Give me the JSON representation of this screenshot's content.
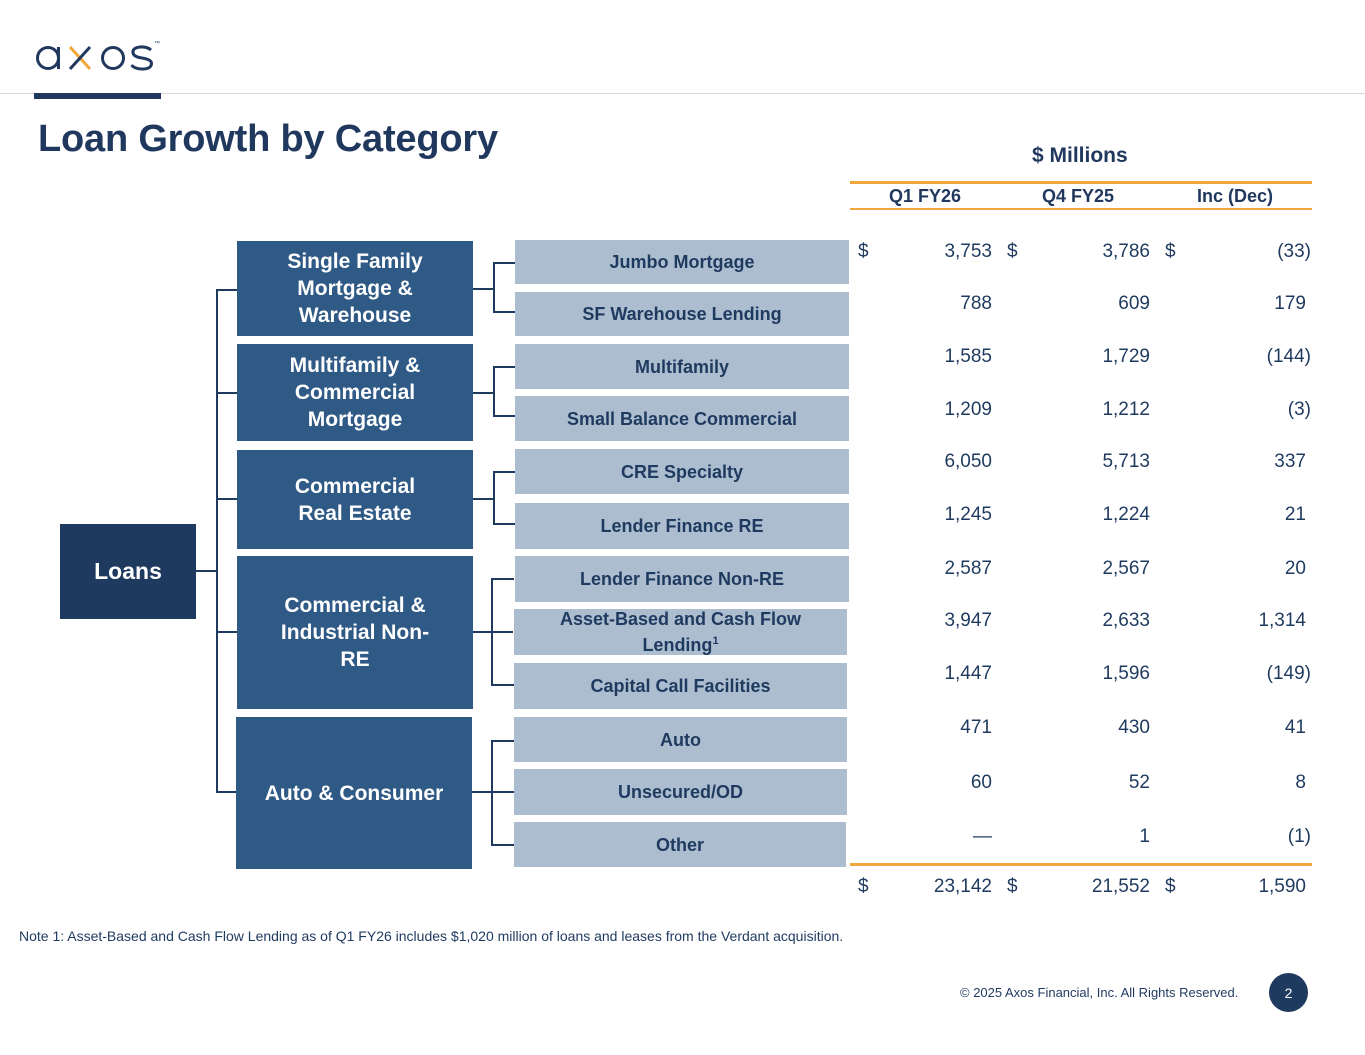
{
  "header": {
    "logo_text": "axos",
    "logo_trademark": "™",
    "title": "Loan Growth by Category"
  },
  "colors": {
    "navy": "#1f3a5f",
    "category_blue": "#2f5a86",
    "sub_gray_blue": "#adbdd0",
    "accent_orange": "#f1a63b",
    "logo_x_orange": "#f1a63b"
  },
  "tree": {
    "root": "Loans",
    "categories": [
      {
        "label": "Single Family Mortgage & Warehouse",
        "items": [
          "Jumbo Mortgage",
          "SF Warehouse Lending"
        ]
      },
      {
        "label": "Multifamily & Commercial Mortgage",
        "items": [
          "Multifamily",
          "Small Balance Commercial"
        ]
      },
      {
        "label": "Commercial Real Estate",
        "items": [
          "CRE Specialty",
          "Lender Finance RE"
        ]
      },
      {
        "label": "Commercial & Industrial Non-RE",
        "items": [
          "Lender Finance Non-RE",
          "Asset-Based and Cash Flow Lending",
          "Capital Call Facilities"
        ]
      },
      {
        "label": "Auto & Consumer",
        "items": [
          "Auto",
          "Unsecured/OD",
          "Other"
        ]
      }
    ],
    "footnote_marker": "1"
  },
  "table": {
    "units": "$ Millions",
    "columns": [
      "Q1 FY26",
      "Q4 FY25",
      "Inc (Dec)"
    ],
    "currency_symbol": "$",
    "rows": [
      {
        "q1_fy26": "3,753",
        "q4_fy25": "3,786",
        "inc_dec": "(33)"
      },
      {
        "q1_fy26": "788",
        "q4_fy25": "609",
        "inc_dec": "179"
      },
      {
        "q1_fy26": "1,585",
        "q4_fy25": "1,729",
        "inc_dec": "(144)"
      },
      {
        "q1_fy26": "1,209",
        "q4_fy25": "1,212",
        "inc_dec": "(3)"
      },
      {
        "q1_fy26": "6,050",
        "q4_fy25": "5,713",
        "inc_dec": "337"
      },
      {
        "q1_fy26": "1,245",
        "q4_fy25": "1,224",
        "inc_dec": "21"
      },
      {
        "q1_fy26": "2,587",
        "q4_fy25": "2,567",
        "inc_dec": "20"
      },
      {
        "q1_fy26": "3,947",
        "q4_fy25": "2,633",
        "inc_dec": "1,314"
      },
      {
        "q1_fy26": "1,447",
        "q4_fy25": "1,596",
        "inc_dec": "(149)"
      },
      {
        "q1_fy26": "471",
        "q4_fy25": "430",
        "inc_dec": "41"
      },
      {
        "q1_fy26": "60",
        "q4_fy25": "52",
        "inc_dec": "8"
      },
      {
        "q1_fy26": "—",
        "q4_fy25": "1",
        "inc_dec": "(1)"
      }
    ],
    "total": {
      "q1_fy26": "23,142",
      "q4_fy25": "21,552",
      "inc_dec": "1,590"
    }
  },
  "footer": {
    "note": "Note 1: Asset-Based and Cash Flow Lending  as of Q1 FY26 includes $1,020 million of loans and leases from the Verdant acquisition.",
    "copyright": "© 2025 Axos Financial, Inc. All Rights Reserved.",
    "page_number": "2"
  }
}
